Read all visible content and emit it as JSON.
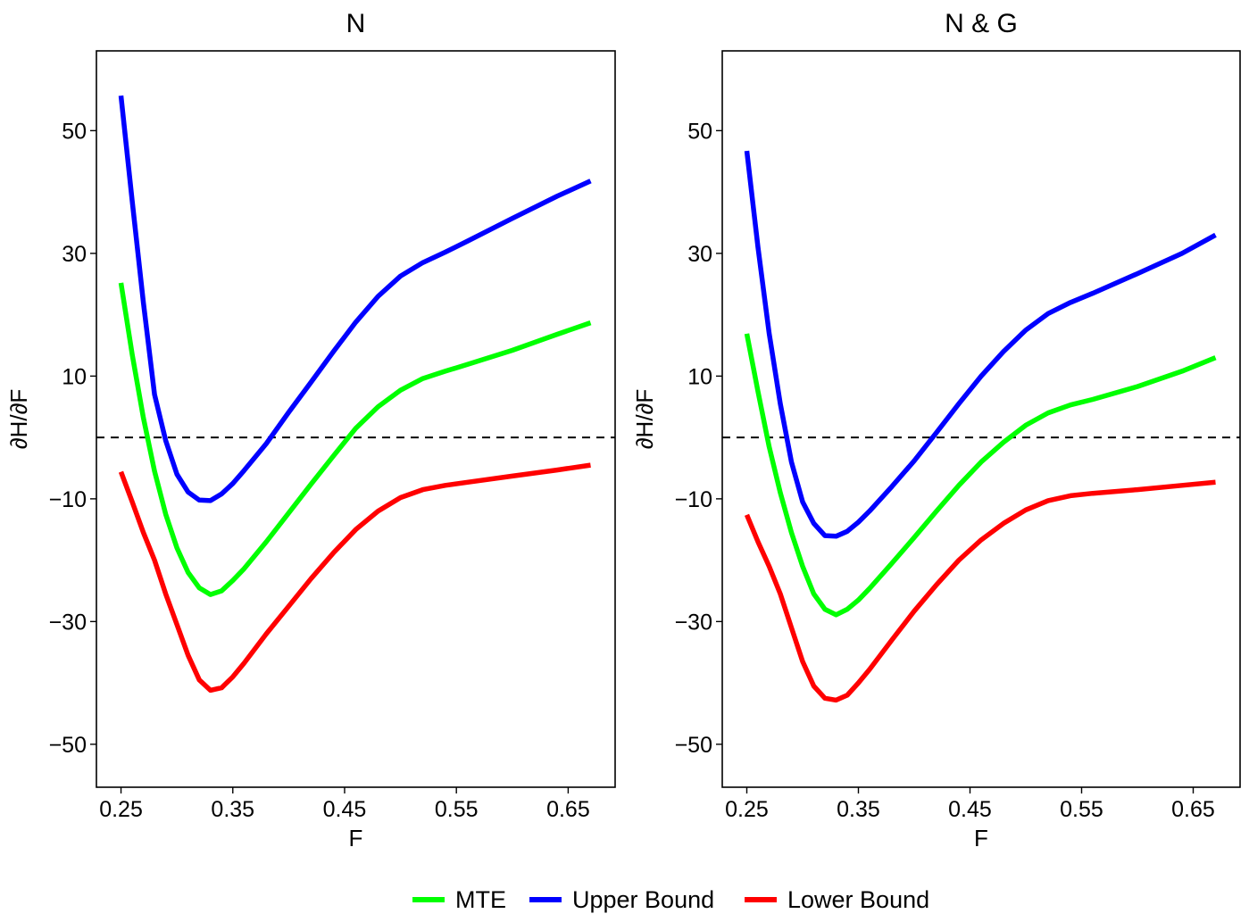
{
  "legend": {
    "position": "bottom",
    "entries": [
      {
        "label": "MTE",
        "color": "#00ff00"
      },
      {
        "label": "Upper Bound",
        "color": "#0000ff"
      },
      {
        "label": "Lower Bound",
        "color": "#ff0000"
      }
    ]
  },
  "chart_data": [
    {
      "type": "line",
      "title": "N",
      "xlabel": "F",
      "ylabel": "∂H/∂F",
      "xlim": [
        0.228,
        0.692
      ],
      "ylim": [
        -57,
        63
      ],
      "xticks": [
        "0.25",
        "0.35",
        "0.45",
        "0.55",
        "0.65"
      ],
      "yticks": [
        "50",
        "30",
        "10",
        "−10",
        "−30",
        "−50"
      ],
      "grid": false,
      "reference_line": {
        "y": 0,
        "style": "dashed",
        "color": "#000000"
      },
      "series": [
        {
          "name": "MTE",
          "color": "#00ff00",
          "x": [
            0.25,
            0.26,
            0.27,
            0.28,
            0.29,
            0.3,
            0.31,
            0.32,
            0.33,
            0.34,
            0.35,
            0.36,
            0.38,
            0.4,
            0.42,
            0.44,
            0.46,
            0.48,
            0.5,
            0.52,
            0.54,
            0.56,
            0.6,
            0.64,
            0.67
          ],
          "y": [
            25.2,
            13.5,
            3.2,
            -5.5,
            -12.5,
            -18.0,
            -22.0,
            -24.5,
            -25.6,
            -25.0,
            -23.3,
            -21.4,
            -17.0,
            -12.3,
            -7.6,
            -3.0,
            1.5,
            5.0,
            7.7,
            9.6,
            10.8,
            11.9,
            14.2,
            16.8,
            18.7
          ]
        },
        {
          "name": "Upper Bound",
          "color": "#0000ff",
          "x": [
            0.25,
            0.26,
            0.27,
            0.28,
            0.29,
            0.3,
            0.31,
            0.32,
            0.33,
            0.34,
            0.35,
            0.36,
            0.38,
            0.4,
            0.42,
            0.44,
            0.46,
            0.48,
            0.5,
            0.52,
            0.54,
            0.56,
            0.6,
            0.64,
            0.67
          ],
          "y": [
            55.7,
            38.5,
            22.0,
            7.0,
            -0.5,
            -6.0,
            -8.9,
            -10.2,
            -10.3,
            -9.2,
            -7.5,
            -5.4,
            -1.0,
            4.1,
            9.0,
            14.0,
            18.8,
            23.0,
            26.3,
            28.5,
            30.2,
            32.0,
            35.7,
            39.3,
            41.8
          ]
        },
        {
          "name": "Lower Bound",
          "color": "#ff0000",
          "x": [
            0.25,
            0.26,
            0.27,
            0.28,
            0.29,
            0.3,
            0.31,
            0.32,
            0.33,
            0.34,
            0.35,
            0.36,
            0.38,
            0.4,
            0.42,
            0.44,
            0.46,
            0.48,
            0.5,
            0.52,
            0.54,
            0.56,
            0.6,
            0.64,
            0.67
          ],
          "y": [
            -5.6,
            -10.5,
            -15.5,
            -20.0,
            -25.5,
            -30.5,
            -35.5,
            -39.5,
            -41.2,
            -40.8,
            -39.0,
            -36.8,
            -32.0,
            -27.5,
            -23.0,
            -18.8,
            -15.0,
            -12.0,
            -9.8,
            -8.5,
            -7.8,
            -7.3,
            -6.3,
            -5.3,
            -4.5
          ]
        }
      ]
    },
    {
      "type": "line",
      "title": "N & G",
      "xlabel": "F",
      "ylabel": "∂H/∂F",
      "xlim": [
        0.228,
        0.692
      ],
      "ylim": [
        -57,
        63
      ],
      "xticks": [
        "0.25",
        "0.35",
        "0.45",
        "0.55",
        "0.65"
      ],
      "yticks": [
        "50",
        "30",
        "10",
        "−10",
        "−30",
        "−50"
      ],
      "grid": false,
      "reference_line": {
        "y": 0,
        "style": "dashed",
        "color": "#000000"
      },
      "series": [
        {
          "name": "MTE",
          "color": "#00ff00",
          "x": [
            0.25,
            0.26,
            0.27,
            0.28,
            0.29,
            0.3,
            0.31,
            0.32,
            0.33,
            0.34,
            0.35,
            0.36,
            0.38,
            0.4,
            0.42,
            0.44,
            0.46,
            0.48,
            0.5,
            0.52,
            0.54,
            0.56,
            0.6,
            0.64,
            0.67
          ],
          "y": [
            16.9,
            7.5,
            -1.5,
            -9.0,
            -15.5,
            -21.0,
            -25.5,
            -28.0,
            -28.9,
            -28.0,
            -26.5,
            -24.6,
            -20.5,
            -16.3,
            -12.0,
            -7.8,
            -4.0,
            -0.8,
            2.0,
            4.0,
            5.3,
            6.2,
            8.3,
            10.8,
            13.0
          ]
        },
        {
          "name": "Upper Bound",
          "color": "#0000ff",
          "x": [
            0.25,
            0.26,
            0.27,
            0.28,
            0.29,
            0.3,
            0.31,
            0.32,
            0.33,
            0.34,
            0.35,
            0.36,
            0.38,
            0.4,
            0.42,
            0.44,
            0.46,
            0.48,
            0.5,
            0.52,
            0.54,
            0.56,
            0.6,
            0.64,
            0.67
          ],
          "y": [
            46.7,
            31.0,
            17.0,
            5.5,
            -4.0,
            -10.5,
            -14.0,
            -16.0,
            -16.1,
            -15.3,
            -13.8,
            -12.0,
            -8.0,
            -3.8,
            0.8,
            5.5,
            10.0,
            14.0,
            17.5,
            20.2,
            22.0,
            23.5,
            26.7,
            30.0,
            33.0
          ]
        },
        {
          "name": "Lower Bound",
          "color": "#ff0000",
          "x": [
            0.25,
            0.26,
            0.27,
            0.28,
            0.29,
            0.3,
            0.31,
            0.32,
            0.33,
            0.34,
            0.35,
            0.36,
            0.38,
            0.4,
            0.42,
            0.44,
            0.46,
            0.48,
            0.5,
            0.52,
            0.54,
            0.56,
            0.6,
            0.64,
            0.67
          ],
          "y": [
            -12.6,
            -17.0,
            -21.0,
            -25.5,
            -31.0,
            -36.5,
            -40.5,
            -42.5,
            -42.8,
            -42.0,
            -40.0,
            -37.8,
            -33.0,
            -28.3,
            -24.0,
            -20.0,
            -16.7,
            -14.0,
            -11.8,
            -10.3,
            -9.5,
            -9.1,
            -8.5,
            -7.8,
            -7.3
          ]
        }
      ]
    }
  ]
}
